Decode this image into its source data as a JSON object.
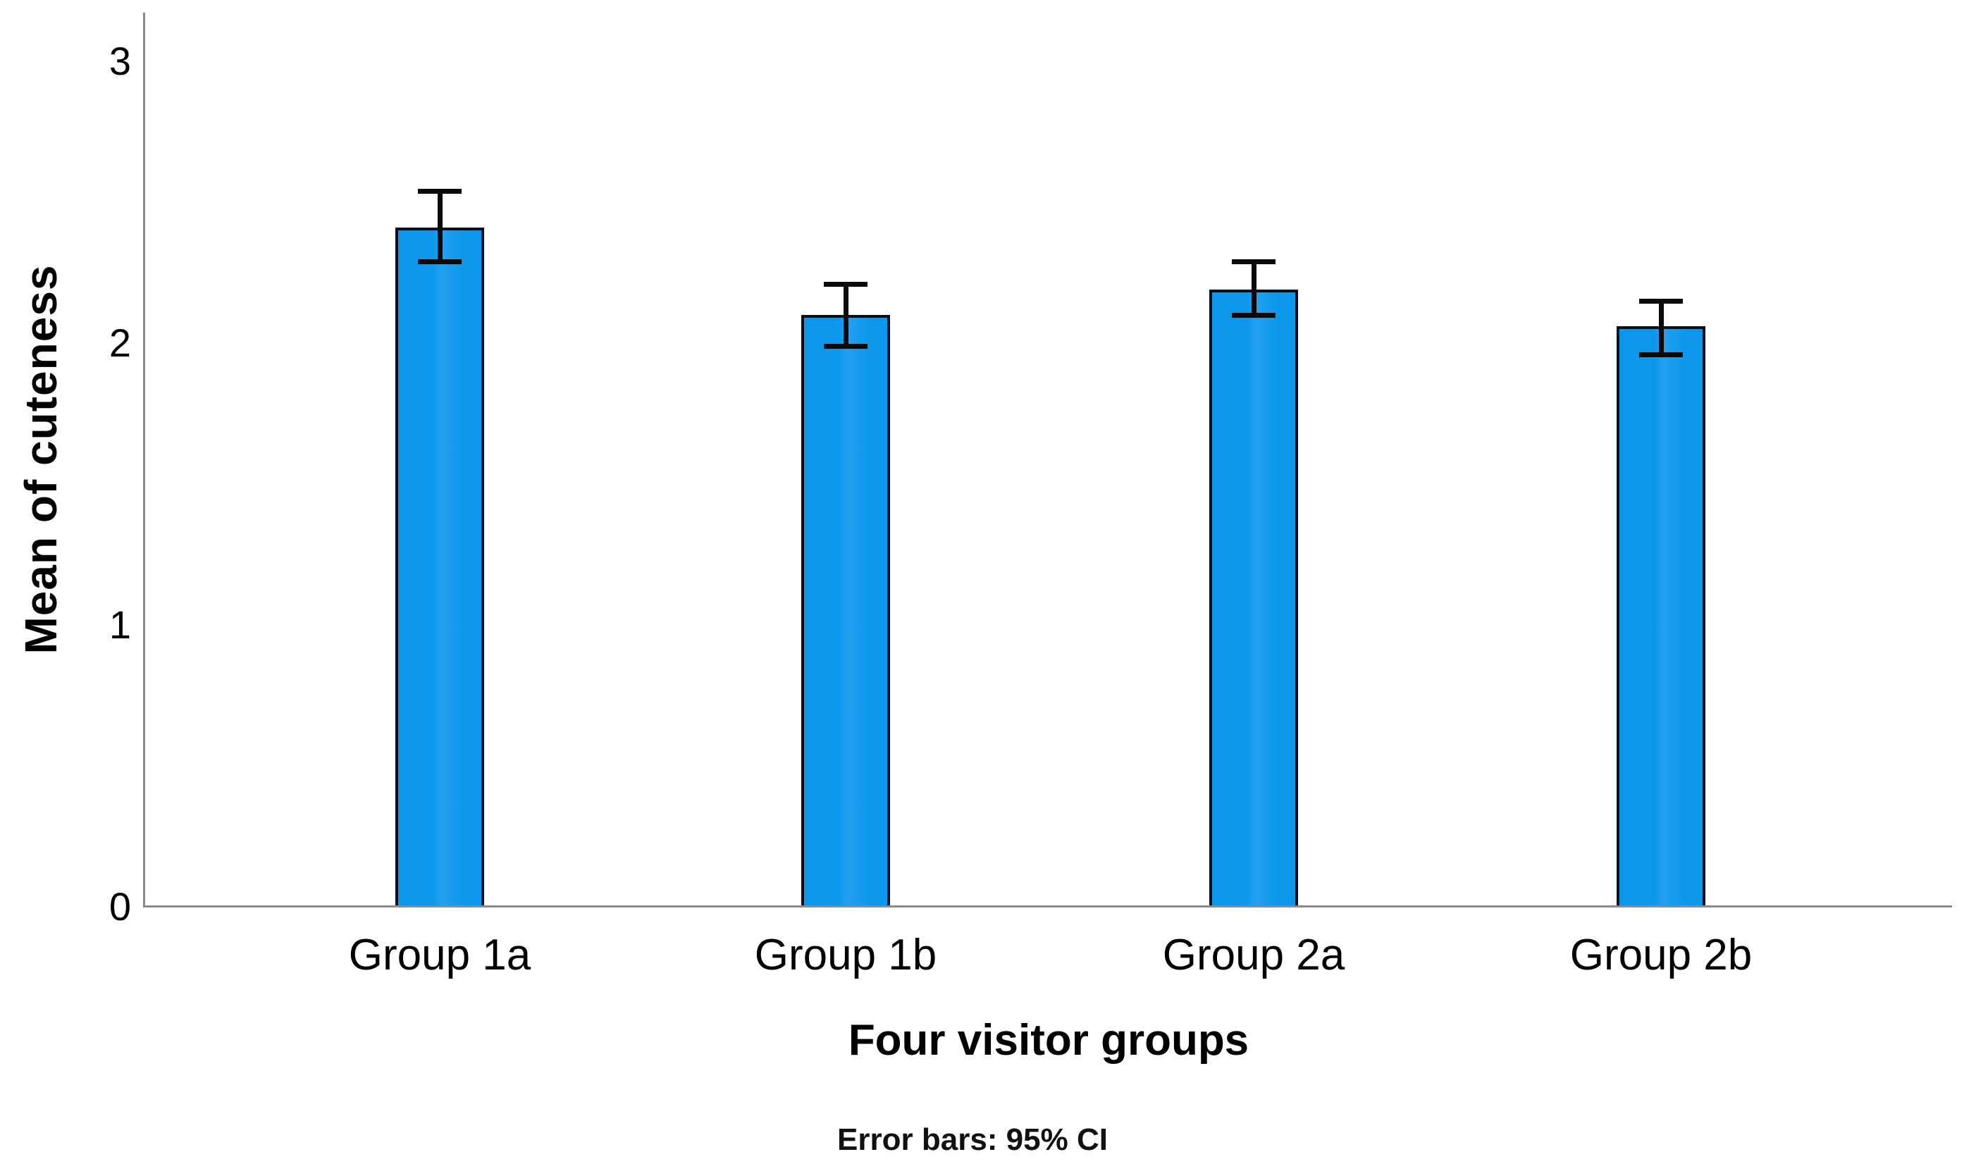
{
  "chart_data": {
    "type": "bar",
    "title": "",
    "xlabel": "Four visitor groups",
    "ylabel": "Mean of cuteness",
    "caption": "Error bars: 95% CI",
    "categories": [
      "Group 1a",
      "Group 1b",
      "Group 2a",
      "Group 2b"
    ],
    "values": [
      2.41,
      2.1,
      2.19,
      2.06
    ],
    "error_bars": {
      "label": "95% CI",
      "upper": [
        2.54,
        2.21,
        2.29,
        2.15
      ],
      "lower": [
        2.29,
        1.99,
        2.1,
        1.96
      ]
    },
    "yticks": [
      0,
      1,
      2,
      3
    ],
    "ylim": [
      0,
      3
    ],
    "grid": false,
    "legend": "none",
    "colors": {
      "bar_fill": "#0b98ec",
      "bar_fill_highlight": "#24a0f0",
      "bar_border": "#05101e",
      "error_bar": "#0a0a0a",
      "axis_line": "#8a8a8a",
      "text": "#000000"
    }
  }
}
